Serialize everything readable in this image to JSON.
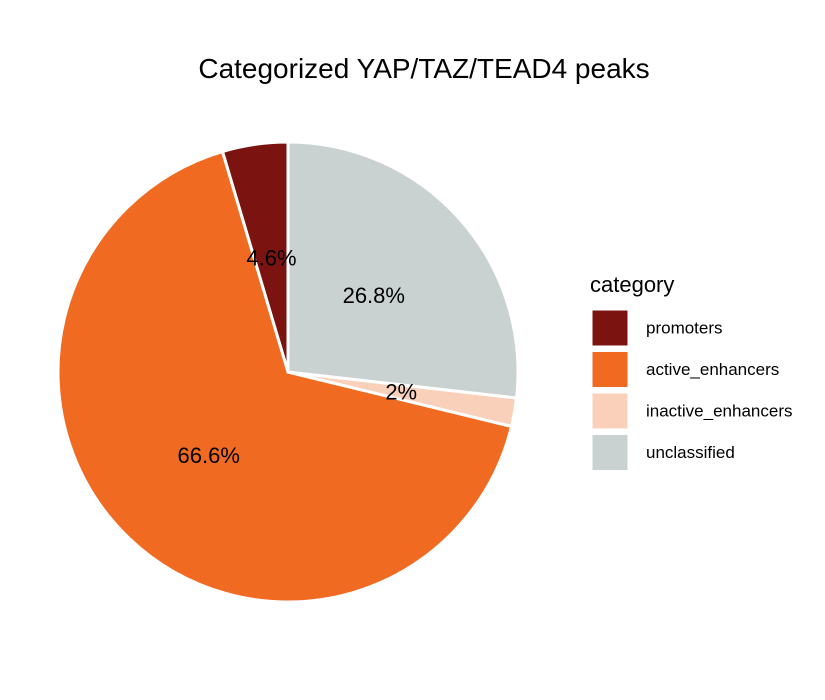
{
  "chart_data": {
    "type": "pie",
    "title": "Categorized YAP/TAZ/TEAD4 peaks",
    "categories": [
      "promoters",
      "active_enhancers",
      "inactive_enhancers",
      "unclassified"
    ],
    "values": [
      4.6,
      66.6,
      2,
      26.8
    ],
    "labels": [
      "4.6%",
      "66.6%",
      "2%",
      "26.8%"
    ],
    "colors": [
      "#7B1411",
      "#F06A22",
      "#F9D0BA",
      "#CAD2D1"
    ],
    "legend": {
      "title": "category",
      "position": "right"
    }
  }
}
